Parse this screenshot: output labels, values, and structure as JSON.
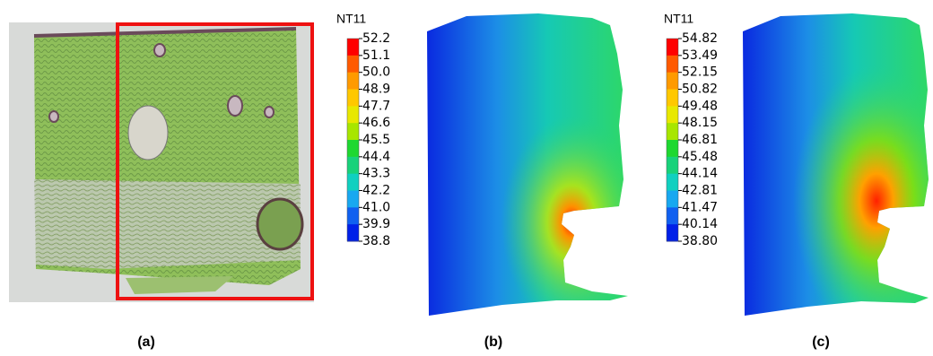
{
  "panels": [
    {
      "caption": "(a)"
    },
    {
      "caption": "(b)",
      "legend_title": "NT11",
      "legend_labels": [
        "52.2",
        "51.1",
        "50.0",
        "48.9",
        "47.7",
        "46.6",
        "45.5",
        "44.4",
        "43.3",
        "42.2",
        "41.0",
        "39.9",
        "38.8"
      ]
    },
    {
      "caption": "(c)",
      "legend_title": "NT11",
      "legend_labels": [
        "54.82",
        "53.49",
        "52.15",
        "50.82",
        "49.48",
        "48.15",
        "46.81",
        "45.48",
        "44.14",
        "42.81",
        "41.47",
        "40.14",
        "38.80"
      ]
    }
  ]
}
